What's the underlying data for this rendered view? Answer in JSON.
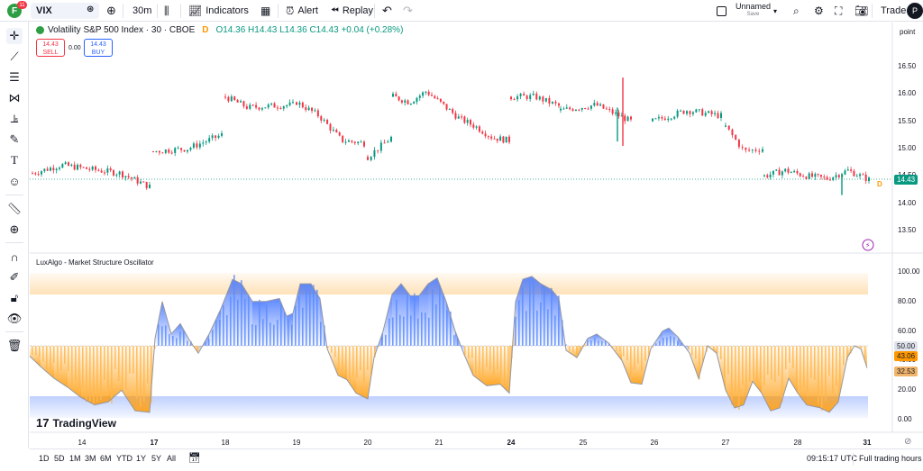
{
  "topbar": {
    "notification_count": "11",
    "symbol": "VIX",
    "interval": "30m",
    "indicators_label": "Indicators",
    "alert_label": "Alert",
    "replay_label": "Replay",
    "layout_name": "Unnamed",
    "layout_status": "Save",
    "trade_label": "Trade",
    "avatar_text": "P"
  },
  "legend": {
    "title": "Volatility S&P 500 Index · 30 · CBOE",
    "badge": "D",
    "ohlc": "O14.36  H14.43  L14.36  C14.43  +0.04 (+0.28%)",
    "sell_price": "14.43",
    "sell_label": "SELL",
    "spread": "0.00",
    "buy_price": "14.43",
    "buy_label": "BUY"
  },
  "scale_mode": "point",
  "price_axis": [
    "16.50",
    "16.00",
    "15.50",
    "15.00",
    "14.50",
    "14.00",
    "13.50"
  ],
  "price_tag": "14.43",
  "oscillator": {
    "title": "LuxAlgo - Market Structure Oscillator",
    "axis": [
      "100.00",
      "80.00",
      "60.00",
      "40.00",
      "20.00",
      "0.00"
    ],
    "tag_main": "50.00",
    "tag_second": "43.06",
    "tag_third": "32.53"
  },
  "x_axis": [
    {
      "label": "14",
      "bold": false
    },
    {
      "label": "17",
      "bold": true
    },
    {
      "label": "18",
      "bold": false
    },
    {
      "label": "19",
      "bold": false
    },
    {
      "label": "20",
      "bold": false
    },
    {
      "label": "21",
      "bold": false
    },
    {
      "label": "24",
      "bold": true
    },
    {
      "label": "25",
      "bold": false
    },
    {
      "label": "26",
      "bold": false
    },
    {
      "label": "27",
      "bold": false
    },
    {
      "label": "28",
      "bold": false
    },
    {
      "label": "31",
      "bold": true
    }
  ],
  "watermark": "TradingView",
  "bottombar": {
    "ranges": [
      "1D",
      "5D",
      "1M",
      "3M",
      "6M",
      "YTD",
      "1Y",
      "5Y",
      "All"
    ],
    "time": "09:15:17 UTC",
    "session": "Full trading hours"
  },
  "colors": {
    "up": "#089981",
    "down": "#f23645",
    "osc_bull": "#2962ff",
    "osc_bear": "#ff9800"
  },
  "chart_data": {
    "type": "candlestick",
    "price_range": [
      13.3,
      16.65
    ],
    "oscillator_range": [
      0,
      100
    ],
    "close_series": [
      {
        "x": "14",
        "y": 14.55
      },
      {
        "x": "14",
        "y": 14.7
      },
      {
        "x": "14",
        "y": 14.62
      },
      {
        "x": "14",
        "y": 14.55
      },
      {
        "x": "14",
        "y": 14.3
      },
      {
        "x": "17",
        "y": 14.95
      },
      {
        "x": "17",
        "y": 15.0
      },
      {
        "x": "17",
        "y": 15.25
      },
      {
        "x": "18",
        "y": 15.95
      },
      {
        "x": "18",
        "y": 15.75
      },
      {
        "x": "18",
        "y": 15.78
      },
      {
        "x": "18",
        "y": 15.8
      },
      {
        "x": "19",
        "y": 15.85
      },
      {
        "x": "19",
        "y": 15.6
      },
      {
        "x": "19",
        "y": 15.15
      },
      {
        "x": "19",
        "y": 15.1
      },
      {
        "x": "20",
        "y": 14.85
      },
      {
        "x": "20",
        "y": 15.2
      },
      {
        "x": "21",
        "y": 15.95
      },
      {
        "x": "21",
        "y": 15.85
      },
      {
        "x": "21",
        "y": 16.05
      },
      {
        "x": "21",
        "y": 15.8
      },
      {
        "x": "21",
        "y": 15.55
      },
      {
        "x": "21",
        "y": 15.4
      },
      {
        "x": "21",
        "y": 15.2
      },
      {
        "x": "21",
        "y": 15.15
      },
      {
        "x": "24",
        "y": 15.95
      },
      {
        "x": "24",
        "y": 15.95
      },
      {
        "x": "24",
        "y": 15.78
      },
      {
        "x": "25",
        "y": 15.7
      },
      {
        "x": "25",
        "y": 15.8
      },
      {
        "x": "25",
        "y": 15.5
      },
      {
        "x": "26",
        "y": 15.5
      },
      {
        "x": "26",
        "y": 15.7
      },
      {
        "x": "26",
        "y": 15.6
      },
      {
        "x": "27",
        "y": 15.4
      },
      {
        "x": "27",
        "y": 14.95
      },
      {
        "x": "27",
        "y": 15.0
      },
      {
        "x": "28",
        "y": 14.5
      },
      {
        "x": "28",
        "y": 14.6
      },
      {
        "x": "28",
        "y": 14.5
      },
      {
        "x": "28",
        "y": 14.45
      },
      {
        "x": "28",
        "y": 14.6
      },
      {
        "x": "28",
        "y": 14.43
      }
    ]
  }
}
